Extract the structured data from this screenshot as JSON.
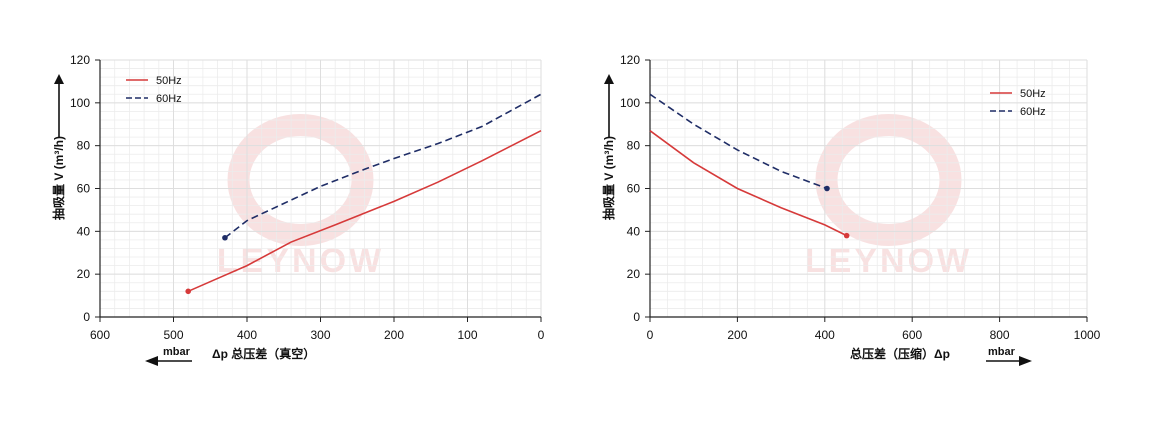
{
  "colors": {
    "series_50hz": "#d63a3a",
    "series_60hz": "#1f2d66",
    "grid": "#dedede",
    "axis": "#222222",
    "watermark": "#f3c9c9"
  },
  "watermark_text": "LEYNOW",
  "chart_data": [
    {
      "type": "line",
      "ylabel": "抽吸量 V (m³/h)",
      "xlabel": "Δp 总压差（真空）",
      "xunit": "mbar",
      "xlim": [
        600,
        0
      ],
      "ylim": [
        0,
        120
      ],
      "x_reversed": true,
      "xticks": [
        600,
        500,
        400,
        300,
        200,
        100,
        0
      ],
      "yticks": [
        0,
        20,
        40,
        60,
        80,
        100,
        120
      ],
      "grid": true,
      "legend_position": "top-left",
      "direction_arrow": "left",
      "series": [
        {
          "name": "50Hz",
          "style": "solid",
          "x": [
            480,
            440,
            400,
            340,
            280,
            200,
            140,
            80,
            0
          ],
          "y": [
            12,
            18,
            24,
            35,
            43,
            54,
            63,
            73,
            87
          ]
        },
        {
          "name": "60Hz",
          "style": "dashed",
          "x": [
            430,
            400,
            350,
            300,
            240,
            200,
            140,
            80,
            0
          ],
          "y": [
            37,
            45,
            53,
            61,
            69,
            74,
            81,
            89,
            104
          ]
        }
      ]
    },
    {
      "type": "line",
      "ylabel": "抽吸量 V (m³/h)",
      "xlabel": "总压差（压缩）Δp",
      "xunit": "mbar",
      "xlim": [
        0,
        1000
      ],
      "ylim": [
        0,
        120
      ],
      "x_reversed": false,
      "xticks": [
        0,
        200,
        400,
        600,
        800,
        1000
      ],
      "yticks": [
        0,
        20,
        40,
        60,
        80,
        100,
        120
      ],
      "grid": true,
      "legend_position": "top-right",
      "direction_arrow": "right",
      "series": [
        {
          "name": "50Hz",
          "style": "solid",
          "x": [
            0,
            100,
            200,
            300,
            400,
            450
          ],
          "y": [
            87,
            72,
            60,
            51,
            43,
            38
          ]
        },
        {
          "name": "60Hz",
          "style": "dashed",
          "x": [
            0,
            100,
            200,
            300,
            405
          ],
          "y": [
            104,
            90,
            78,
            68,
            60
          ]
        }
      ]
    }
  ]
}
